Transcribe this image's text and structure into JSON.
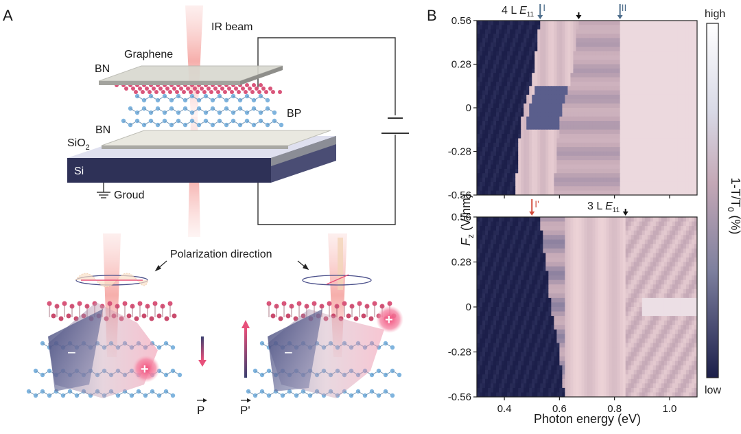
{
  "panel_a": {
    "label": "A",
    "ir_beam": "IR beam",
    "graphene": "Graphene",
    "bn_top": "BN",
    "bp": "BP",
    "sio2": "SiO",
    "sio2_sub": "2",
    "bn_bottom": "BN",
    "si": "Si",
    "ground": "Groud",
    "polarization": "Polarization direction",
    "minus": "−",
    "plus": "+",
    "p": "P",
    "p_prime": "P'",
    "colors": {
      "graphene_atom": "#d9557a",
      "bp_atom": "#7fb4de",
      "si_block": "#2e3157",
      "beam": "#f6b8b8"
    }
  },
  "panel_b": {
    "label": "B",
    "top_markers": {
      "I": "I",
      "label_4L": "4 L ",
      "E11": "E",
      "E11_sub": "11",
      "II": "II"
    },
    "bottom_markers": {
      "I_prime": "I'",
      "label_3L": "3 L ",
      "E11": "E",
      "E11_sub": "11"
    },
    "y_axis_label": "F",
    "y_axis_sub": "z",
    "y_axis_unit": " (V/nm)",
    "x_axis_label": "Photon energy (eV)",
    "colorbar_label": "1-T/T",
    "colorbar_sub": "0",
    "colorbar_unit": " (%)",
    "colorbar_high": "high",
    "colorbar_low": "low",
    "colors": {
      "low": "#1c1f4a",
      "mid": "#f1d9d9",
      "high": "#ffffff"
    }
  },
  "chart_data": [
    {
      "type": "heatmap",
      "title": "4 L",
      "xlabel": "Photon energy (eV)",
      "ylabel": "F_z (V/nm)",
      "zlabel": "1-T/T0 (%)",
      "xlim": [
        0.3,
        1.1
      ],
      "ylim": [
        -0.56,
        0.56
      ],
      "x_ticks": [
        "0.4",
        "0.6",
        "0.8",
        "1.0"
      ],
      "y_ticks": [
        "0.56",
        "0.28",
        "0",
        "-0.28",
        "-0.56"
      ],
      "markers": [
        {
          "label": "I",
          "x": 0.53
        },
        {
          "label": "4 L E11",
          "x": 0.67
        },
        {
          "label": "II",
          "x": 0.82
        }
      ],
      "edge_boundary": {
        "y": [
          0.56,
          0.28,
          0.1,
          0,
          -0.1,
          -0.28,
          -0.56
        ],
        "x": [
          0.53,
          0.51,
          0.49,
          0.47,
          0.46,
          0.45,
          0.44
        ]
      }
    },
    {
      "type": "heatmap",
      "title": "3 L",
      "xlabel": "Photon energy (eV)",
      "ylabel": "F_z (V/nm)",
      "zlabel": "1-T/T0 (%)",
      "xlim": [
        0.3,
        1.1
      ],
      "ylim": [
        -0.56,
        0.56
      ],
      "x_ticks": [
        "0.4",
        "0.6",
        "0.8",
        "1.0"
      ],
      "y_ticks": [
        "0.56",
        "0.28",
        "0",
        "-0.28",
        "-0.56"
      ],
      "markers": [
        {
          "label": "I'",
          "x": 0.5
        },
        {
          "label": "3 L E11",
          "x": 0.84
        }
      ],
      "edge_boundary": {
        "y": [
          0.56,
          0.28,
          0,
          -0.28,
          -0.56
        ],
        "x": [
          0.53,
          0.55,
          0.57,
          0.6,
          0.62
        ]
      }
    }
  ]
}
